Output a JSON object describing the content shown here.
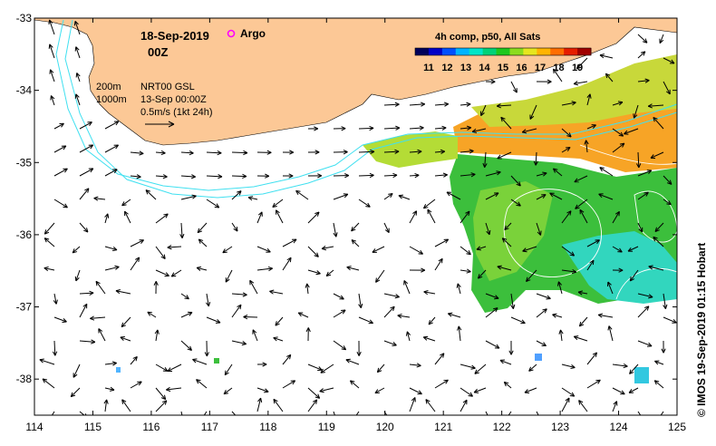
{
  "header": {
    "date": "18-Sep-2019",
    "hour": "00Z",
    "argo_label": "Argo",
    "argo_color": "#ff00ff"
  },
  "legend": {
    "depth_200": "200m",
    "depth_1000": "1000m",
    "product": "NRT00 GSL",
    "product_time": "13-Sep 00:00Z",
    "scale": "0.5m/s (1kt 24h)"
  },
  "colorbar": {
    "title": "4h comp, p50, All Sats",
    "ticks": [
      "11",
      "12",
      "13",
      "14",
      "15",
      "16",
      "17",
      "18",
      "19"
    ],
    "colors": [
      "#00005a",
      "#0000c8",
      "#0050ff",
      "#00b4ff",
      "#00e6c8",
      "#00d278",
      "#1ec81e",
      "#8cdc1e",
      "#e6e61e",
      "#ffb400",
      "#ff6e00",
      "#e61e00",
      "#a00000"
    ]
  },
  "axes": {
    "x_ticks": [
      "114",
      "115",
      "116",
      "117",
      "118",
      "119",
      "120",
      "121",
      "122",
      "123",
      "124",
      "125"
    ],
    "y_ticks": [
      "-33",
      "-34",
      "-35",
      "-36",
      "-37",
      "-38"
    ],
    "xlim": [
      114,
      125
    ],
    "ylim": [
      -38.5,
      -33
    ]
  },
  "credit": "© IMOS 19-Sep-2019 01:15 Hobart",
  "colors": {
    "land": "#fcc896",
    "shelf_contour": "#40e0f0",
    "sst_warm": "#ffa020",
    "sst_mid": "#40c040",
    "sst_cool": "#30d8c8"
  }
}
